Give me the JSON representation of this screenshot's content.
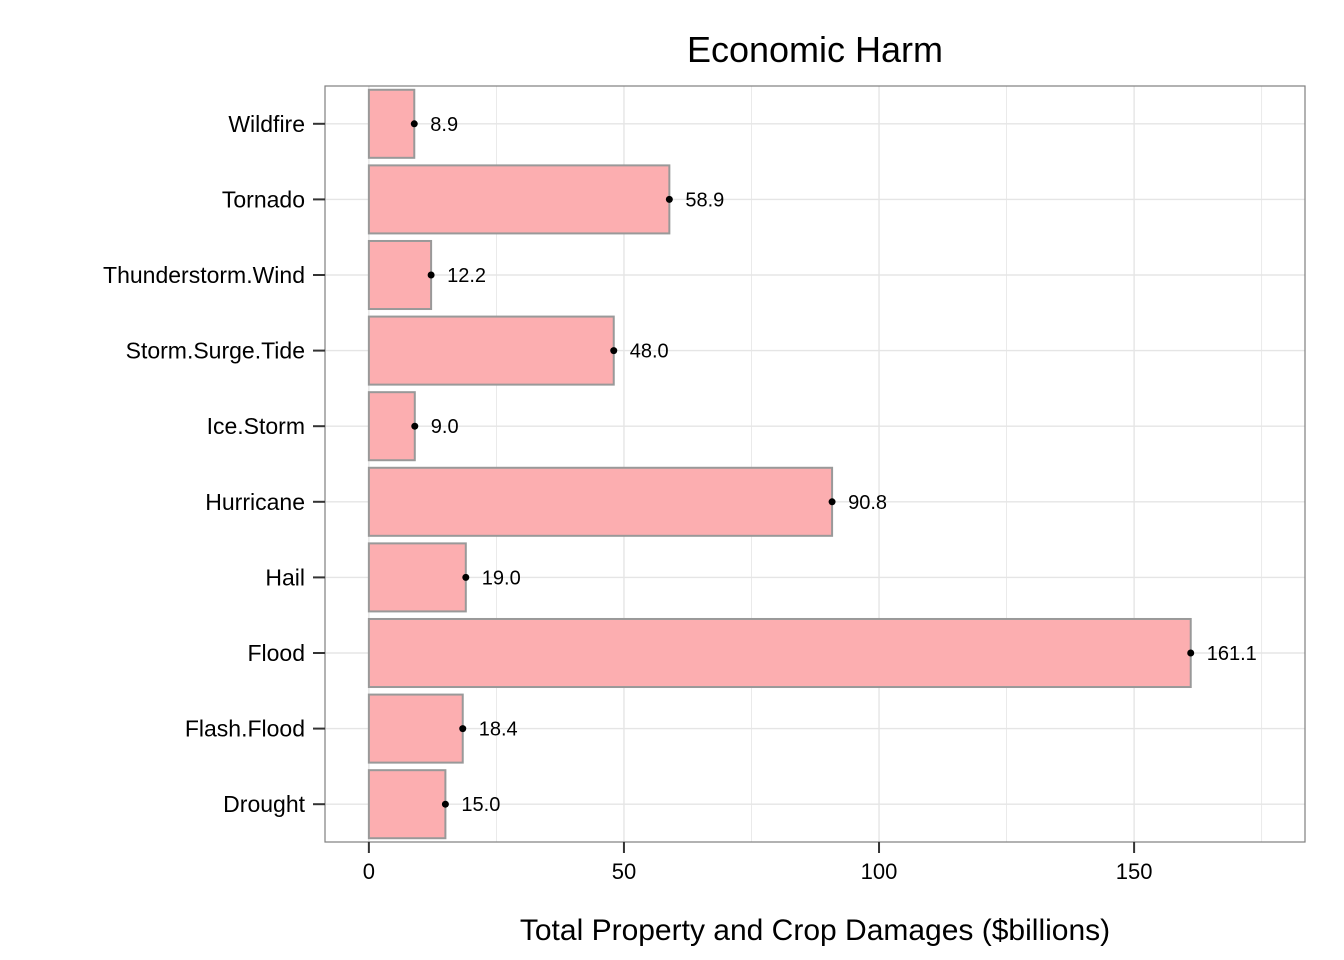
{
  "chart_data": {
    "type": "bar",
    "orientation": "horizontal",
    "title": "Economic Harm",
    "xlabel": "Total Property and Crop Damages ($billions)",
    "ylabel": "",
    "categories": [
      "Wildfire",
      "Tornado",
      "Thunderstorm.Wind",
      "Storm.Surge.Tide",
      "Ice.Storm",
      "Hurricane",
      "Hail",
      "Flood",
      "Flash.Flood",
      "Drought"
    ],
    "values": [
      8.9,
      58.9,
      12.2,
      48.0,
      9.0,
      90.8,
      19.0,
      161.1,
      18.4,
      15.0
    ],
    "value_labels": [
      "8.9",
      "58.9",
      "12.2",
      "48.0",
      "9.0",
      "90.8",
      "19.0",
      "161.1",
      "18.4",
      "15.0"
    ],
    "xlim": [
      -8.6,
      183.5
    ],
    "xticks": [
      0,
      50,
      100,
      150
    ],
    "xtick_labels": [
      "0",
      "50",
      "100",
      "150"
    ],
    "grid": true,
    "bar_fill": "#fcaeb0",
    "bar_stroke": "#999999",
    "panel_border": "#7f7f7f",
    "grid_color": "#e5e5e5"
  }
}
